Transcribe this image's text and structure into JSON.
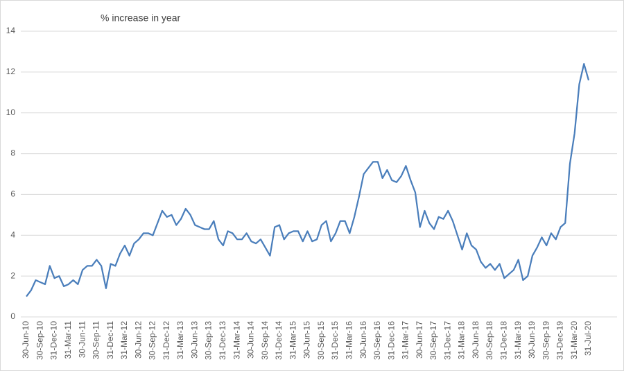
{
  "chart_data": {
    "type": "line",
    "title": "% increase in year",
    "categories": [
      "30-Jun-10",
      null,
      null,
      "30-Sep-10",
      null,
      null,
      "31-Dec-10",
      null,
      null,
      "31-Mar-11",
      null,
      null,
      "30-Jun-11",
      null,
      null,
      "30-Sep-11",
      null,
      null,
      "31-Dec-11",
      null,
      null,
      "31-Mar-12",
      null,
      null,
      "30-Jun-12",
      null,
      null,
      "30-Sep-12",
      null,
      null,
      "31-Dec-12",
      null,
      null,
      "31-Mar-13",
      null,
      null,
      "30-Jun-13",
      null,
      null,
      "30-Sep-13",
      null,
      null,
      "31-Dec-13",
      null,
      null,
      "31-Mar-14",
      null,
      null,
      "30-Jun-14",
      null,
      null,
      "30-Sep-14",
      null,
      null,
      "31-Dec-14",
      null,
      null,
      "31-Mar-15",
      null,
      null,
      "30-Jun-15",
      null,
      null,
      "30-Sep-15",
      null,
      null,
      "31-Dec-15",
      null,
      null,
      "31-Mar-16",
      null,
      null,
      "30-Jun-16",
      null,
      null,
      "30-Sep-16",
      null,
      null,
      "31-Dec-16",
      null,
      null,
      "31-Mar-17",
      null,
      null,
      "30-Jun-17",
      null,
      null,
      "30-Sep-17",
      null,
      null,
      "31-Dec-17",
      null,
      null,
      "31-Mar-18",
      null,
      null,
      "30-Jun-18",
      null,
      null,
      "30-Sep-18",
      null,
      null,
      "31-Dec-18",
      null,
      null,
      "31-Mar-19",
      null,
      null,
      "30-Jun-19",
      null,
      null,
      "30-Sep-19",
      null,
      null,
      "31-Dec-19",
      null,
      null,
      "31-Mar-20",
      null,
      null,
      "31-Jul-20"
    ],
    "values": [
      1.0,
      1.3,
      1.8,
      1.7,
      1.6,
      2.5,
      1.9,
      2.0,
      1.5,
      1.6,
      1.8,
      1.6,
      2.3,
      2.5,
      2.5,
      2.8,
      2.5,
      1.4,
      2.6,
      2.5,
      3.1,
      3.5,
      3.0,
      3.6,
      3.8,
      4.1,
      4.1,
      4.0,
      4.6,
      5.2,
      4.9,
      5.0,
      4.5,
      4.8,
      5.3,
      5.0,
      4.5,
      4.4,
      4.3,
      4.3,
      4.7,
      3.8,
      3.5,
      4.2,
      4.1,
      3.8,
      3.8,
      4.1,
      3.7,
      3.6,
      3.8,
      3.4,
      3.0,
      4.4,
      4.5,
      3.8,
      4.1,
      4.2,
      4.2,
      3.7,
      4.2,
      3.7,
      3.8,
      4.5,
      4.7,
      3.7,
      4.1,
      4.7,
      4.7,
      4.1,
      4.9,
      5.9,
      7.0,
      7.3,
      7.6,
      7.6,
      6.8,
      7.2,
      6.7,
      6.6,
      6.9,
      7.4,
      6.7,
      6.1,
      4.4,
      5.2,
      4.6,
      4.3,
      4.9,
      4.8,
      5.2,
      4.7,
      4.0,
      3.3,
      4.1,
      3.5,
      3.3,
      2.7,
      2.4,
      2.6,
      2.3,
      2.6,
      1.9,
      2.1,
      2.3,
      2.8,
      1.8,
      2.0,
      3.0,
      3.4,
      3.9,
      3.5,
      4.1,
      3.8,
      4.4,
      4.6,
      7.5,
      9.0,
      11.4,
      12.4,
      11.6
    ],
    "color": "#4a7ebb",
    "ylim": [
      0,
      14
    ],
    "yticks": [
      0,
      2,
      4,
      6,
      8,
      10,
      12,
      14
    ],
    "grid": true
  }
}
